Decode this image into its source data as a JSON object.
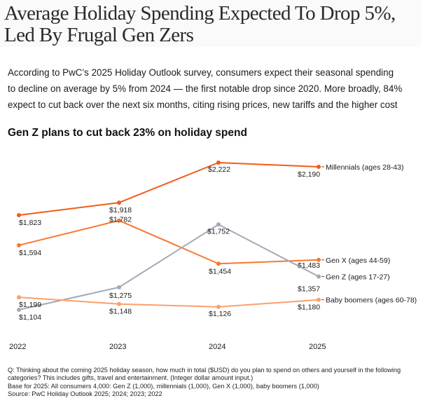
{
  "headline": "Average Holiday Spending Expected To Drop 5%, Led By Frugal Gen Zers",
  "headline_lines": [
    "Average Holiday Spending Expected To Drop 5%,",
    "Led By Frugal Gen Zers"
  ],
  "intro_lines": [
    "According to PwC’s 2025 Holiday Outlook survey, consumers expect their seasonal spending",
    "to decline on average by 5% from 2024 — the first notable drop since 2020. More broadly, 84%",
    "expect to cut back over the next six months, citing rising prices, new tariffs and the higher cost"
  ],
  "footnote_lines": [
    "Q: Thinking about the coming 2025 holiday season, how much in total ($USD) do you plan to spend on others and yourself in the following",
    "categories? This includes gifts, travel and entertainment. (Integer dollar amount input.)",
    "Base for 2025: All consumers 4,000: Gen Z (1,000), millennials (1,000), Gen X (1,000), baby boomers (1,000)",
    "Source: PwC Holiday Outlook 2025; 2024; 2023; 2022"
  ],
  "chart_data": {
    "type": "line",
    "title": "Gen Z plans to cut back 23% on holiday spend",
    "xlabel": "",
    "ylabel": "",
    "x": [
      "2022",
      "2023",
      "2024",
      "2025"
    ],
    "ylim": [
      1104,
      2222
    ],
    "grid": false,
    "legend": "right-end-labels",
    "value_prefix": "$",
    "series": [
      {
        "name": "Millennials (ages 28-43)",
        "color": "#f25c19",
        "values": [
          1823,
          1918,
          2222,
          2190
        ],
        "labels": [
          "$1,823",
          "$1,918",
          "$2,222",
          "$2,190"
        ]
      },
      {
        "name": "Gen X (ages 44-59)",
        "color": "#f7782e",
        "values": [
          1594,
          1782,
          1454,
          1483
        ],
        "labels": [
          "$1,594",
          "$1,782",
          "$1,454",
          "$1,483"
        ]
      },
      {
        "name": "Gen Z (ages 17-27)",
        "color": "#a4a9b6",
        "values": [
          1104,
          1275,
          1752,
          1357
        ],
        "labels": [
          "$1,104",
          "$1,275",
          "$1,752",
          "$1,357"
        ]
      },
      {
        "name": "Baby boomers (ages 60-78)",
        "color": "#fba06c",
        "values": [
          1199,
          1148,
          1126,
          1180
        ],
        "labels": [
          "$1,199",
          "$1,148",
          "$1,126",
          "$1,180"
        ]
      }
    ]
  }
}
